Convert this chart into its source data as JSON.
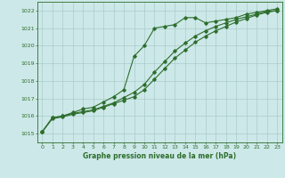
{
  "title": "Graphe pression niveau de la mer (hPa)",
  "bg_color": "#cde8e8",
  "grid_color": "#aacccc",
  "line_color": "#2d6e2d",
  "xlim": [
    -0.5,
    23.5
  ],
  "ylim": [
    1014.5,
    1022.5
  ],
  "yticks": [
    1015,
    1016,
    1017,
    1018,
    1019,
    1020,
    1021,
    1022
  ],
  "xticks": [
    0,
    1,
    2,
    3,
    4,
    5,
    6,
    7,
    8,
    9,
    10,
    11,
    12,
    13,
    14,
    15,
    16,
    17,
    18,
    19,
    20,
    21,
    22,
    23
  ],
  "series1": [
    1015.1,
    1015.9,
    1016.0,
    1016.2,
    1016.4,
    1016.5,
    1016.8,
    1017.1,
    1017.5,
    1019.4,
    1020.0,
    1021.0,
    1021.1,
    1021.2,
    1021.6,
    1021.6,
    1021.3,
    1021.4,
    1021.5,
    1021.6,
    1021.8,
    1021.9,
    1022.0,
    1022.1
  ],
  "series2": [
    1015.1,
    1015.9,
    1016.0,
    1016.15,
    1016.25,
    1016.35,
    1016.55,
    1016.75,
    1017.05,
    1017.35,
    1017.8,
    1018.5,
    1019.1,
    1019.7,
    1020.15,
    1020.55,
    1020.85,
    1021.1,
    1021.3,
    1021.5,
    1021.65,
    1021.8,
    1021.95,
    1022.0
  ],
  "series3": [
    1015.1,
    1015.85,
    1015.95,
    1016.1,
    1016.2,
    1016.3,
    1016.5,
    1016.7,
    1016.9,
    1017.1,
    1017.5,
    1018.1,
    1018.7,
    1019.3,
    1019.75,
    1020.2,
    1020.55,
    1020.85,
    1021.1,
    1021.35,
    1021.55,
    1021.75,
    1021.9,
    1022.0
  ]
}
